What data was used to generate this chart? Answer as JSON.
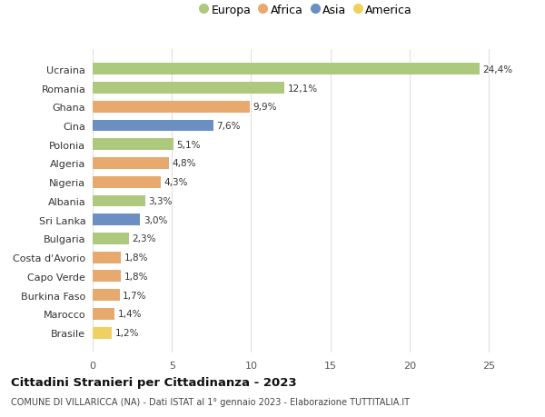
{
  "countries": [
    "Ucraina",
    "Romania",
    "Ghana",
    "Cina",
    "Polonia",
    "Algeria",
    "Nigeria",
    "Albania",
    "Sri Lanka",
    "Bulgaria",
    "Costa d'Avorio",
    "Capo Verde",
    "Burkina Faso",
    "Marocco",
    "Brasile"
  ],
  "values": [
    24.4,
    12.1,
    9.9,
    7.6,
    5.1,
    4.8,
    4.3,
    3.3,
    3.0,
    2.3,
    1.8,
    1.8,
    1.7,
    1.4,
    1.2
  ],
  "labels": [
    "24,4%",
    "12,1%",
    "9,9%",
    "7,6%",
    "5,1%",
    "4,8%",
    "4,3%",
    "3,3%",
    "3,0%",
    "2,3%",
    "1,8%",
    "1,8%",
    "1,7%",
    "1,4%",
    "1,2%"
  ],
  "continents": [
    "Europa",
    "Europa",
    "Africa",
    "Asia",
    "Europa",
    "Africa",
    "Africa",
    "Europa",
    "Asia",
    "Europa",
    "Africa",
    "Africa",
    "Africa",
    "Africa",
    "America"
  ],
  "colors": {
    "Europa": "#adc97e",
    "Africa": "#e8a96e",
    "Asia": "#6b8fc2",
    "America": "#f0d060"
  },
  "xlim": [
    0,
    27
  ],
  "xticks": [
    0,
    5,
    10,
    15,
    20,
    25
  ],
  "title": "Cittadini Stranieri per Cittadinanza - 2023",
  "subtitle": "COMUNE DI VILLARICCA (NA) - Dati ISTAT al 1° gennaio 2023 - Elaborazione TUTTITALIA.IT",
  "background_color": "#ffffff",
  "grid_color": "#e0e0e0"
}
